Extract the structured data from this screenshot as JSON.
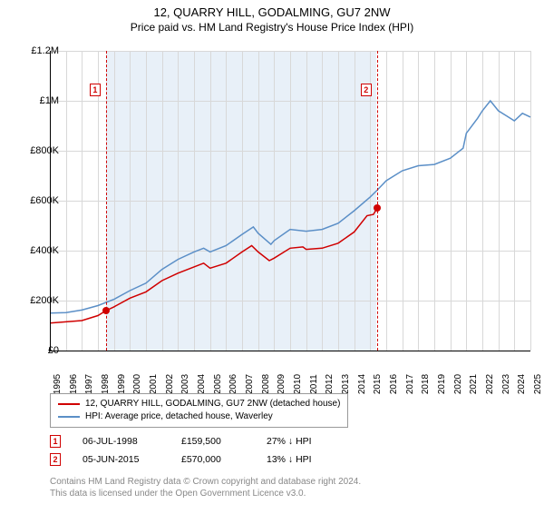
{
  "title": "12, QUARRY HILL, GODALMING, GU7 2NW",
  "subtitle": "Price paid vs. HM Land Registry's House Price Index (HPI)",
  "chart": {
    "type": "line",
    "x_range": [
      1995,
      2025
    ],
    "ylim": [
      0,
      1200000
    ],
    "ytick_step": 200000,
    "yticks": [
      "£0",
      "£200K",
      "£400K",
      "£600K",
      "£800K",
      "£1M",
      "£1.2M"
    ],
    "xticks": [
      "1995",
      "1996",
      "1997",
      "1998",
      "1999",
      "2000",
      "2001",
      "2002",
      "2003",
      "2004",
      "2005",
      "2006",
      "2007",
      "2008",
      "2009",
      "2010",
      "2011",
      "2012",
      "2013",
      "2014",
      "2015",
      "2016",
      "2017",
      "2018",
      "2019",
      "2020",
      "2021",
      "2022",
      "2023",
      "2024",
      "2025"
    ],
    "shaded_band": {
      "start": 1998.5,
      "end": 2015.4
    },
    "grid_color": "#d8d8d8",
    "background_color": "#ffffff",
    "shaded_color": "#e8f0f8",
    "series": {
      "price_paid": {
        "label": "12, QUARRY HILL, GODALMING, GU7 2NW (detached house)",
        "color": "#d00000",
        "line_width": 1.5,
        "points": [
          [
            1995,
            110000
          ],
          [
            1996,
            115000
          ],
          [
            1997,
            120000
          ],
          [
            1998,
            140000
          ],
          [
            1998.5,
            159500
          ],
          [
            1999,
            175000
          ],
          [
            2000,
            210000
          ],
          [
            2001,
            235000
          ],
          [
            2002,
            280000
          ],
          [
            2003,
            310000
          ],
          [
            2004,
            335000
          ],
          [
            2004.6,
            350000
          ],
          [
            2005,
            330000
          ],
          [
            2006,
            350000
          ],
          [
            2007,
            395000
          ],
          [
            2007.6,
            420000
          ],
          [
            2008,
            395000
          ],
          [
            2008.7,
            360000
          ],
          [
            2009,
            370000
          ],
          [
            2010,
            410000
          ],
          [
            2010.8,
            415000
          ],
          [
            2011,
            405000
          ],
          [
            2012,
            410000
          ],
          [
            2013,
            430000
          ],
          [
            2014,
            475000
          ],
          [
            2014.8,
            540000
          ],
          [
            2015.2,
            545000
          ],
          [
            2015.42,
            570000
          ]
        ]
      },
      "hpi": {
        "label": "HPI: Average price, detached house, Waverley",
        "color": "#5b8fc7",
        "line_width": 1.5,
        "points": [
          [
            1995,
            150000
          ],
          [
            1996,
            152000
          ],
          [
            1997,
            162000
          ],
          [
            1998,
            180000
          ],
          [
            1999,
            205000
          ],
          [
            2000,
            240000
          ],
          [
            2001,
            270000
          ],
          [
            2002,
            325000
          ],
          [
            2003,
            365000
          ],
          [
            2004,
            395000
          ],
          [
            2004.6,
            410000
          ],
          [
            2005,
            395000
          ],
          [
            2006,
            420000
          ],
          [
            2007,
            465000
          ],
          [
            2007.7,
            495000
          ],
          [
            2008,
            470000
          ],
          [
            2008.8,
            425000
          ],
          [
            2009,
            440000
          ],
          [
            2010,
            485000
          ],
          [
            2011,
            478000
          ],
          [
            2012,
            485000
          ],
          [
            2013,
            510000
          ],
          [
            2014,
            560000
          ],
          [
            2015,
            615000
          ],
          [
            2015.4,
            640000
          ],
          [
            2016,
            680000
          ],
          [
            2017,
            720000
          ],
          [
            2018,
            740000
          ],
          [
            2019,
            745000
          ],
          [
            2020,
            770000
          ],
          [
            2020.8,
            810000
          ],
          [
            2021,
            870000
          ],
          [
            2021.7,
            930000
          ],
          [
            2022,
            960000
          ],
          [
            2022.5,
            1000000
          ],
          [
            2023,
            960000
          ],
          [
            2023.5,
            940000
          ],
          [
            2024,
            920000
          ],
          [
            2024.5,
            950000
          ],
          [
            2025,
            935000
          ]
        ]
      }
    },
    "sale_markers": [
      {
        "idx": "1",
        "year": 1998.5,
        "value": 159500
      },
      {
        "idx": "2",
        "year": 2015.42,
        "value": 570000
      }
    ]
  },
  "legend": {
    "items": [
      {
        "color": "#d00000",
        "label": "12, QUARRY HILL, GODALMING, GU7 2NW (detached house)"
      },
      {
        "color": "#5b8fc7",
        "label": "HPI: Average price, detached house, Waverley"
      }
    ]
  },
  "sales": [
    {
      "idx": "1",
      "date": "06-JUL-1998",
      "price": "£159,500",
      "diff": "27% ↓ HPI"
    },
    {
      "idx": "2",
      "date": "05-JUN-2015",
      "price": "£570,000",
      "diff": "13% ↓ HPI"
    }
  ],
  "footer": {
    "line1": "Contains HM Land Registry data © Crown copyright and database right 2024.",
    "line2": "This data is licensed under the Open Government Licence v3.0."
  }
}
